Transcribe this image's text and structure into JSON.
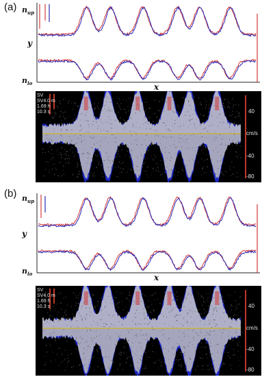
{
  "panels": [
    {
      "label": "(a)",
      "n_up_main": "n",
      "n_up_sub": "up",
      "n_lo_main": "n",
      "n_lo_sub": "lo",
      "y_label": "y",
      "x_label": "x",
      "doppler": {
        "line1": "SV",
        "line2": "SV4.0 m",
        "line3": "1.69 h",
        "line4": "10.3 s",
        "scale": [
          "40",
          "cm/s",
          "-40",
          "-80"
        ]
      }
    },
    {
      "label": "(b)",
      "n_up_main": "n",
      "n_up_sub": "up",
      "n_lo_main": "n",
      "n_lo_sub": "lo",
      "y_label": "y",
      "x_label": "x",
      "doppler": {
        "line1": "SV",
        "line2": "SV4.0 m",
        "line3": "1.69 h",
        "line4": "10.3 s",
        "scale": [
          "40",
          "cm/s",
          "-40",
          "-80"
        ]
      }
    }
  ],
  "colors": {
    "trace_blue": "#2b2bb8",
    "trace_red": "#d23a3a",
    "scale_red": "#c0392b",
    "baseline_yellow": "#c9b23a"
  }
}
